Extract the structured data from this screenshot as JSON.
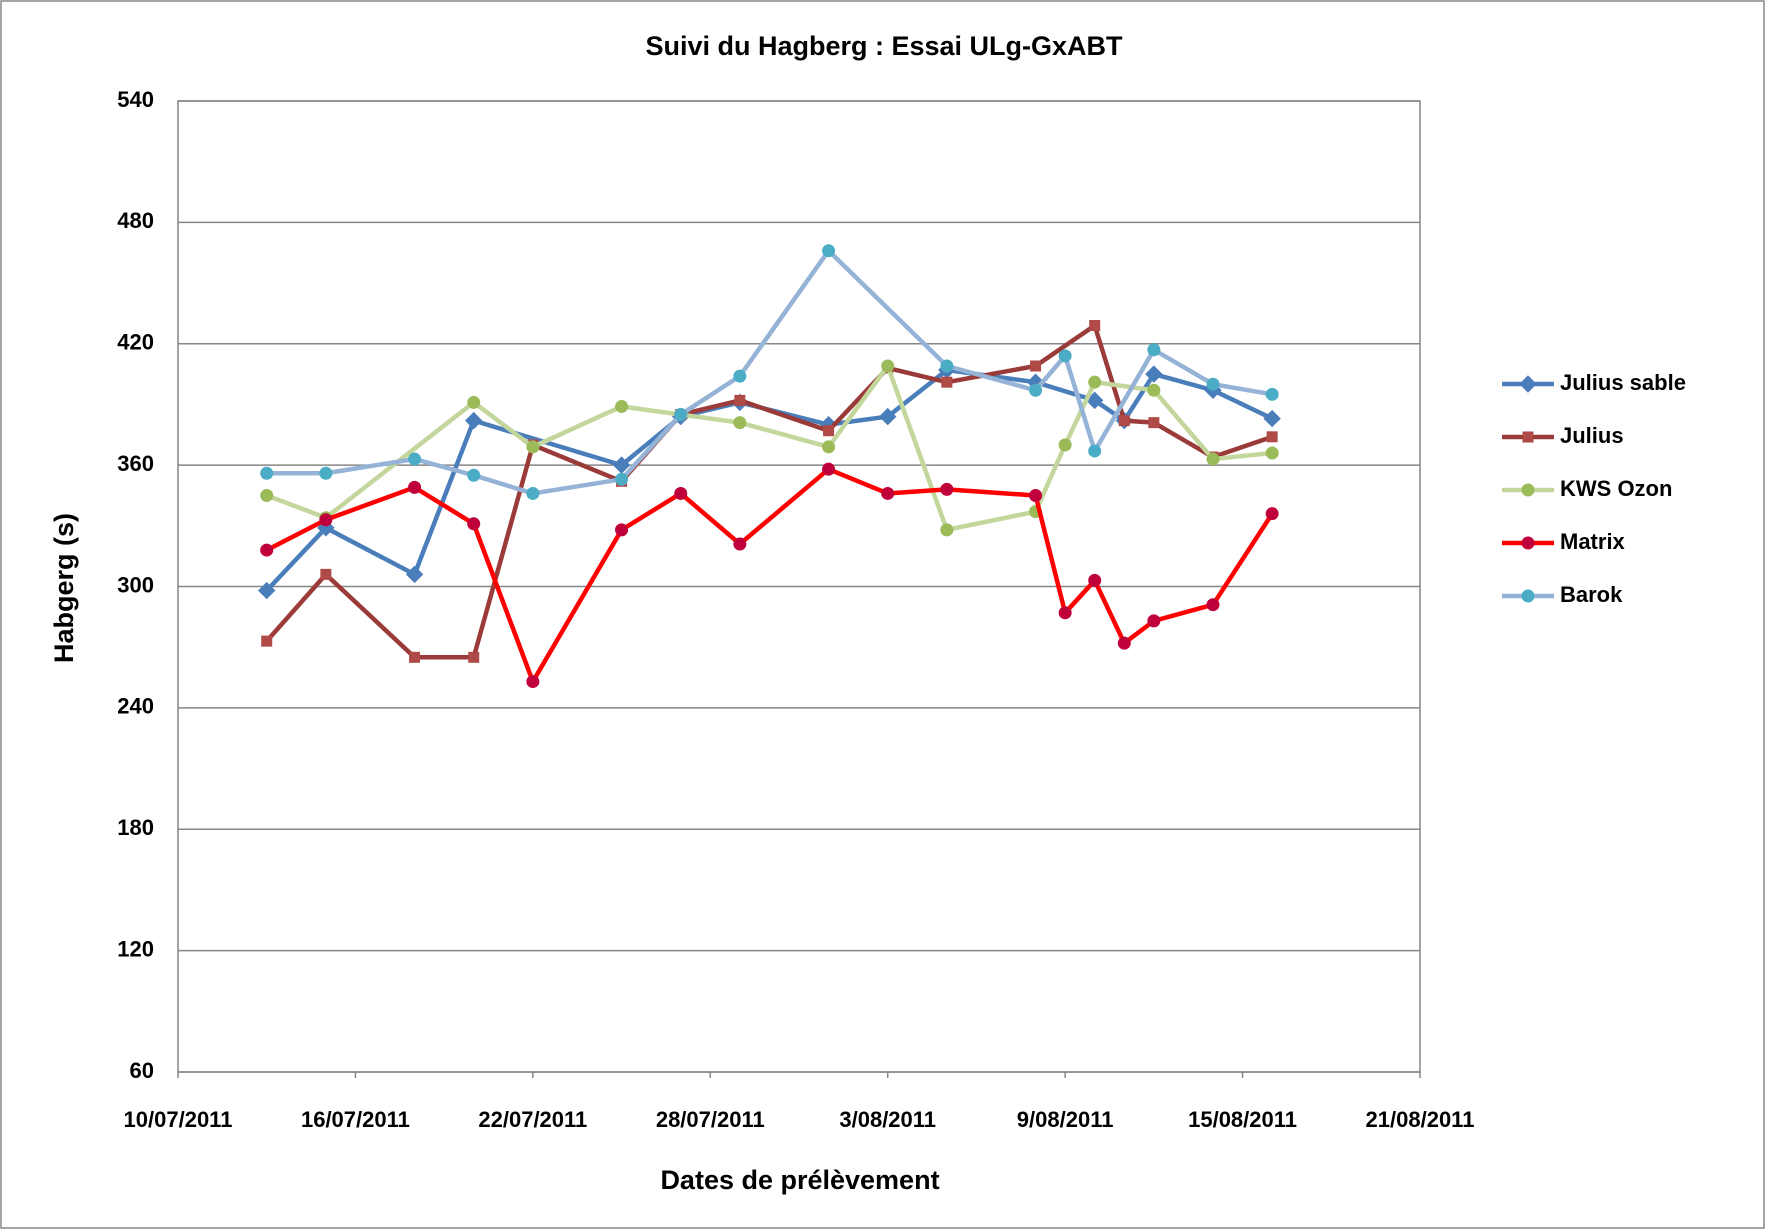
{
  "chart_data": {
    "type": "line",
    "title": "Suivi du Hagberg  :  Essai  ULg-GxABT",
    "x_label": "Dates de prélèvement",
    "y_label": "Habgerg (s)",
    "xlim": [
      "2011-07-10",
      "2011-08-21"
    ],
    "xticks": [
      {
        "value": "2011-07-10",
        "label": "10/07/2011"
      },
      {
        "value": "2011-07-16",
        "label": "16/07/2011"
      },
      {
        "value": "2011-07-22",
        "label": "22/07/2011"
      },
      {
        "value": "2011-07-28",
        "label": "28/07/2011"
      },
      {
        "value": "2011-08-03",
        "label": "3/08/2011"
      },
      {
        "value": "2011-08-09",
        "label": "9/08/2011"
      },
      {
        "value": "2011-08-15",
        "label": "15/08/2011"
      },
      {
        "value": "2011-08-21",
        "label": "21/08/2011"
      }
    ],
    "ylim": [
      60,
      540
    ],
    "yticks": [
      60,
      120,
      180,
      240,
      300,
      360,
      420,
      480,
      540
    ],
    "grid": true,
    "legend": "right",
    "series": [
      {
        "name": "Julius sable",
        "color": "#4a7ebb",
        "marker_color": "#4a7ebb",
        "marker": "diamond",
        "x": [
          "2011-07-13",
          "2011-07-15",
          "2011-07-18",
          "2011-07-20",
          "2011-07-25",
          "2011-07-27",
          "2011-07-29",
          "2011-08-01",
          "2011-08-03",
          "2011-08-05",
          "2011-08-08",
          "2011-08-10",
          "2011-08-11",
          "2011-08-12",
          "2011-08-14",
          "2011-08-16"
        ],
        "values": [
          298,
          329,
          306,
          382,
          360,
          384,
          391,
          380,
          384,
          407,
          401,
          392,
          382,
          405,
          397,
          383
        ]
      },
      {
        "name": "Julius",
        "color": "#9b3b39",
        "marker_color": "#b04a47",
        "marker": "square",
        "x": [
          "2011-07-13",
          "2011-07-15",
          "2011-07-18",
          "2011-07-20",
          "2011-07-22",
          "2011-07-25",
          "2011-07-27",
          "2011-07-29",
          "2011-08-01",
          "2011-08-03",
          "2011-08-05",
          "2011-08-08",
          "2011-08-10",
          "2011-08-11",
          "2011-08-12",
          "2011-08-14",
          "2011-08-16"
        ],
        "values": [
          273,
          306,
          265,
          265,
          370,
          352,
          385,
          392,
          377,
          408,
          401,
          409,
          429,
          382,
          381,
          364,
          374
        ]
      },
      {
        "name": "KWS Ozon",
        "color": "#c3d69b",
        "marker_color": "#9bbb59",
        "marker": "circle",
        "x": [
          "2011-07-13",
          "2011-07-15",
          "2011-07-20",
          "2011-07-22",
          "2011-07-25",
          "2011-07-27",
          "2011-07-29",
          "2011-08-01",
          "2011-08-03",
          "2011-08-05",
          "2011-08-08",
          "2011-08-09",
          "2011-08-10",
          "2011-08-12",
          "2011-08-14",
          "2011-08-16"
        ],
        "values": [
          345,
          334,
          391,
          369,
          389,
          385,
          381,
          369,
          409,
          328,
          337,
          370,
          401,
          397,
          363,
          366
        ]
      },
      {
        "name": "Matrix",
        "color": "#ff0000",
        "marker_color": "#c0003a",
        "marker": "circle",
        "x": [
          "2011-07-13",
          "2011-07-15",
          "2011-07-18",
          "2011-07-20",
          "2011-07-22",
          "2011-07-25",
          "2011-07-27",
          "2011-07-29",
          "2011-08-01",
          "2011-08-03",
          "2011-08-05",
          "2011-08-08",
          "2011-08-09",
          "2011-08-10",
          "2011-08-11",
          "2011-08-12",
          "2011-08-14",
          "2011-08-16"
        ],
        "values": [
          318,
          333,
          349,
          331,
          253,
          328,
          346,
          321,
          358,
          346,
          348,
          345,
          287,
          303,
          272,
          283,
          291,
          336
        ]
      },
      {
        "name": "Barok",
        "color": "#95b3d7",
        "marker_color": "#4bacc6",
        "marker": "circle",
        "x": [
          "2011-07-13",
          "2011-07-15",
          "2011-07-18",
          "2011-07-20",
          "2011-07-22",
          "2011-07-25",
          "2011-07-27",
          "2011-07-29",
          "2011-08-01",
          "2011-08-05",
          "2011-08-08",
          "2011-08-09",
          "2011-08-10",
          "2011-08-12",
          "2011-08-14",
          "2011-08-16"
        ],
        "values": [
          356,
          356,
          363,
          355,
          346,
          353,
          385,
          404,
          466,
          409,
          397,
          414,
          367,
          417,
          400,
          395
        ]
      }
    ]
  }
}
